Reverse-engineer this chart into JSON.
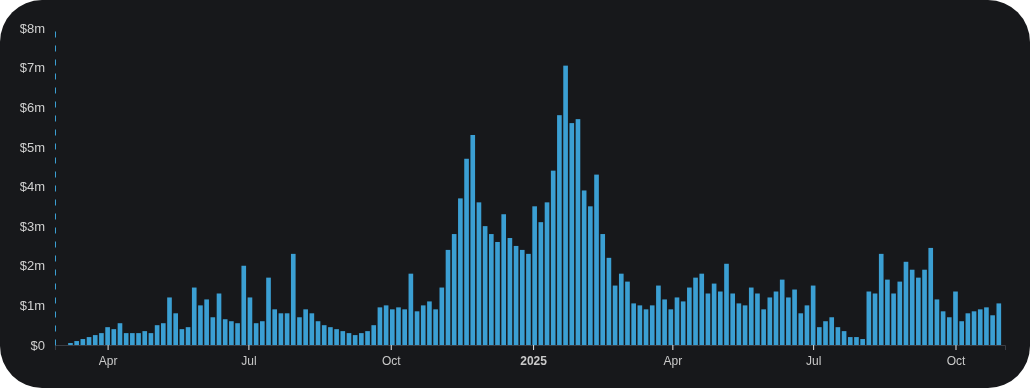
{
  "chart_data": {
    "type": "bar",
    "color": "#3b9fd3",
    "x": [
      "2024-03-08",
      "2024-03-12",
      "2024-03-16",
      "2024-03-20",
      "2024-03-24",
      "2024-03-28",
      "2024-04-01",
      "2024-04-05",
      "2024-04-09",
      "2024-04-13",
      "2024-04-17",
      "2024-04-21",
      "2024-04-25",
      "2024-04-29",
      "2024-05-03",
      "2024-05-07",
      "2024-05-11",
      "2024-05-15",
      "2024-05-19",
      "2024-05-23",
      "2024-05-27",
      "2024-05-31",
      "2024-06-04",
      "2024-06-08",
      "2024-06-12",
      "2024-06-16",
      "2024-06-20",
      "2024-06-24",
      "2024-06-28",
      "2024-07-02",
      "2024-07-06",
      "2024-07-10",
      "2024-07-14",
      "2024-07-18",
      "2024-07-22",
      "2024-07-26",
      "2024-07-30",
      "2024-08-03",
      "2024-08-07",
      "2024-08-11",
      "2024-08-15",
      "2024-08-19",
      "2024-08-23",
      "2024-08-27",
      "2024-08-31",
      "2024-09-04",
      "2024-09-08",
      "2024-09-12",
      "2024-09-16",
      "2024-09-20",
      "2024-09-24",
      "2024-09-28",
      "2024-10-02",
      "2024-10-06",
      "2024-10-10",
      "2024-10-14",
      "2024-10-18",
      "2024-10-22",
      "2024-10-26",
      "2024-10-30",
      "2024-11-03",
      "2024-11-07",
      "2024-11-11",
      "2024-11-15",
      "2024-11-19",
      "2024-11-23",
      "2024-11-27",
      "2024-12-01",
      "2024-12-05",
      "2024-12-09",
      "2024-12-13",
      "2024-12-17",
      "2024-12-21",
      "2024-12-25",
      "2024-12-29",
      "2025-01-02",
      "2025-01-06",
      "2025-01-10",
      "2025-01-14",
      "2025-01-18",
      "2025-01-22",
      "2025-01-26",
      "2025-01-30",
      "2025-02-03",
      "2025-02-07",
      "2025-02-11",
      "2025-02-15",
      "2025-02-19",
      "2025-02-23",
      "2025-02-27",
      "2025-03-03",
      "2025-03-07",
      "2025-03-11",
      "2025-03-15",
      "2025-03-19",
      "2025-03-23",
      "2025-03-27",
      "2025-03-31",
      "2025-04-04",
      "2025-04-08",
      "2025-04-12",
      "2025-04-16",
      "2025-04-20",
      "2025-04-24",
      "2025-04-28",
      "2025-05-02",
      "2025-05-06",
      "2025-05-10",
      "2025-05-14",
      "2025-05-18",
      "2025-05-22",
      "2025-05-26",
      "2025-05-30",
      "2025-06-03",
      "2025-06-07",
      "2025-06-11",
      "2025-06-15",
      "2025-06-19",
      "2025-06-23",
      "2025-06-27",
      "2025-07-01",
      "2025-07-05",
      "2025-07-09",
      "2025-07-13",
      "2025-07-17",
      "2025-07-21",
      "2025-07-25",
      "2025-07-29",
      "2025-08-02",
      "2025-08-06",
      "2025-08-10",
      "2025-08-14",
      "2025-08-18",
      "2025-08-22",
      "2025-08-26",
      "2025-08-30",
      "2025-09-03",
      "2025-09-07",
      "2025-09-11",
      "2025-09-15",
      "2025-09-19",
      "2025-09-23",
      "2025-09-27",
      "2025-10-01",
      "2025-10-05",
      "2025-10-09",
      "2025-10-13",
      "2025-10-17",
      "2025-10-21",
      "2025-10-25",
      "2025-10-29"
    ],
    "values": [
      0.05,
      0.1,
      0.15,
      0.2,
      0.25,
      0.3,
      0.45,
      0.4,
      0.55,
      0.3,
      0.3,
      0.3,
      0.35,
      0.3,
      0.5,
      0.55,
      1.2,
      0.8,
      0.4,
      0.45,
      1.45,
      1.0,
      1.15,
      0.7,
      1.3,
      0.65,
      0.6,
      0.55,
      2.0,
      1.2,
      0.55,
      0.6,
      1.7,
      0.9,
      0.8,
      0.8,
      2.3,
      0.7,
      0.9,
      0.8,
      0.6,
      0.5,
      0.45,
      0.4,
      0.35,
      0.3,
      0.25,
      0.3,
      0.35,
      0.5,
      0.95,
      1.0,
      0.9,
      0.95,
      0.9,
      1.8,
      0.85,
      1.0,
      1.1,
      0.9,
      1.45,
      2.4,
      2.8,
      3.7,
      4.7,
      5.3,
      3.6,
      3.0,
      2.8,
      2.6,
      3.3,
      2.7,
      2.5,
      2.4,
      2.3,
      3.5,
      3.1,
      3.6,
      4.4,
      5.8,
      7.05,
      5.6,
      5.7,
      3.9,
      3.5,
      4.3,
      2.8,
      2.2,
      1.5,
      1.8,
      1.6,
      1.05,
      1.0,
      0.9,
      1.0,
      1.5,
      1.15,
      0.9,
      1.2,
      1.1,
      1.45,
      1.7,
      1.8,
      1.3,
      1.55,
      1.35,
      2.05,
      1.3,
      1.05,
      1.0,
      1.45,
      1.3,
      0.9,
      1.2,
      1.35,
      1.65,
      1.2,
      1.4,
      0.8,
      1.0,
      1.5,
      0.45,
      0.6,
      0.7,
      0.45,
      0.35,
      0.2,
      0.2,
      0.15,
      1.35,
      1.3,
      2.3,
      1.65,
      1.3,
      1.6,
      2.1,
      1.9,
      1.7,
      1.9,
      2.45,
      1.15,
      0.85,
      0.7,
      1.35,
      0.6,
      0.8,
      0.85,
      0.9,
      0.95,
      0.75,
      1.05
    ],
    "xlim": [
      "2024-02-27",
      "2025-11-02"
    ],
    "xticks": [
      {
        "value": "2024-04-01",
        "label": "Apr"
      },
      {
        "value": "2024-07-01",
        "label": "Jul"
      },
      {
        "value": "2024-10-01",
        "label": "Oct"
      },
      {
        "value": "2025-01-01",
        "label": "2025"
      },
      {
        "value": "2025-04-01",
        "label": "Apr"
      },
      {
        "value": "2025-07-01",
        "label": "Jul"
      },
      {
        "value": "2025-10-01",
        "label": "Oct"
      }
    ],
    "ylim": [
      0,
      8
    ],
    "yticks": [
      {
        "value": 0,
        "label": "$0"
      },
      {
        "value": 1,
        "label": "$1m"
      },
      {
        "value": 2,
        "label": "$2m"
      },
      {
        "value": 3,
        "label": "$3m"
      },
      {
        "value": 4,
        "label": "$4m"
      },
      {
        "value": 5,
        "label": "$5m"
      },
      {
        "value": 6,
        "label": "$6m"
      },
      {
        "value": 7,
        "label": "$7m"
      },
      {
        "value": 8,
        "label": "$8m"
      }
    ]
  }
}
